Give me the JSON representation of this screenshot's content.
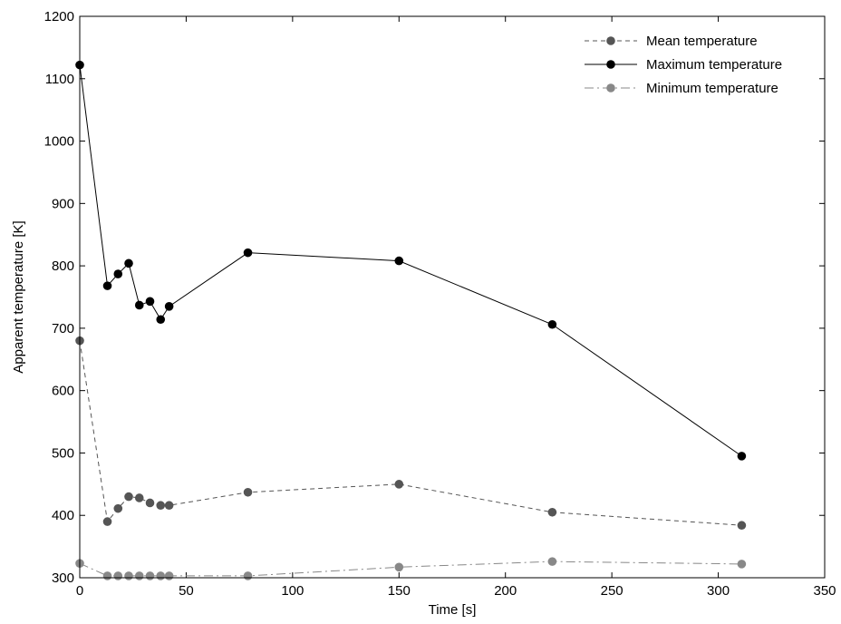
{
  "chart_data": {
    "type": "line",
    "title": "",
    "xlabel": "Time [s]",
    "ylabel": "Apparent temperature [K]",
    "xlim": [
      0,
      350
    ],
    "ylim": [
      300,
      1200
    ],
    "xticks": [
      0,
      50,
      100,
      150,
      200,
      250,
      300,
      350
    ],
    "yticks": [
      300,
      400,
      500,
      600,
      700,
      800,
      900,
      1000,
      1100,
      1200
    ],
    "grid": false,
    "legend_position": "top-right",
    "series": [
      {
        "name": "Mean temperature",
        "line_style": "dashed",
        "color": "#555555",
        "x": [
          0,
          13,
          18,
          23,
          28,
          33,
          38,
          42,
          79,
          150,
          222,
          311
        ],
        "y": [
          680,
          390,
          411,
          430,
          428,
          420,
          416,
          416,
          437,
          450,
          405,
          384
        ]
      },
      {
        "name": "Maximum temperature",
        "line_style": "solid",
        "color": "#000000",
        "x": [
          0,
          13,
          18,
          23,
          28,
          33,
          38,
          42,
          79,
          150,
          222,
          311
        ],
        "y": [
          1122,
          768,
          787,
          804,
          737,
          743,
          714,
          735,
          821,
          808,
          706,
          495
        ]
      },
      {
        "name": "Minimum temperature",
        "line_style": "dash-dot",
        "color": "#888888",
        "x": [
          0,
          13,
          18,
          23,
          28,
          33,
          38,
          42,
          79,
          150,
          222,
          311
        ],
        "y": [
          323,
          303,
          303,
          303,
          303,
          303,
          303,
          303,
          303,
          317,
          326,
          322
        ]
      }
    ]
  }
}
